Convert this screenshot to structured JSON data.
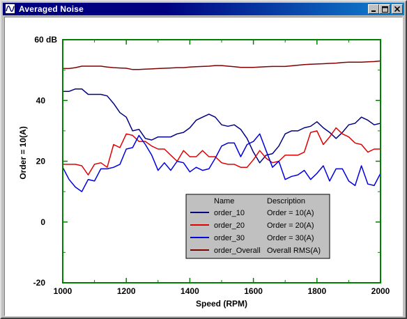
{
  "window": {
    "title": "Averaged Noise",
    "icon": "wave-app-icon",
    "buttons": {
      "minimize": "minimize-icon",
      "maximize": "maximize-icon",
      "close": "close-icon"
    }
  },
  "chart_data": {
    "type": "line",
    "xlabel": "Speed (RPM)",
    "ylabel": "Order = 10(A)",
    "ytop_label": "60 dB",
    "xlim": [
      1000,
      2000
    ],
    "ylim": [
      -20,
      60
    ],
    "xticks": [
      1000,
      1200,
      1400,
      1600,
      1800,
      2000
    ],
    "yticks": [
      -20,
      0,
      20,
      40,
      60
    ],
    "grid": false,
    "frame_color": "#008000",
    "legend": {
      "placement": "bottom-center",
      "header": {
        "name": "Name",
        "description": "Description"
      }
    },
    "series": [
      {
        "name": "order_10",
        "description": "Order = 10(A)",
        "color": "#000080",
        "x": [
          1000,
          1020,
          1040,
          1060,
          1080,
          1100,
          1120,
          1140,
          1160,
          1180,
          1200,
          1220,
          1240,
          1260,
          1280,
          1300,
          1320,
          1340,
          1360,
          1380,
          1400,
          1420,
          1440,
          1460,
          1480,
          1500,
          1520,
          1540,
          1560,
          1580,
          1600,
          1620,
          1640,
          1660,
          1680,
          1700,
          1720,
          1740,
          1760,
          1780,
          1800,
          1820,
          1840,
          1860,
          1880,
          1900,
          1920,
          1940,
          1960,
          1980,
          2000
        ],
        "values": [
          43,
          43,
          43.8,
          43.8,
          42,
          42,
          42,
          41.5,
          39,
          36,
          34.5,
          30,
          30.5,
          27.5,
          27,
          28,
          28,
          28,
          29,
          29.5,
          31,
          33.5,
          34.5,
          35.5,
          34.5,
          32,
          31.5,
          32,
          30.5,
          27.5,
          23,
          19.5,
          22,
          22.5,
          25,
          29,
          30,
          30,
          31,
          31.5,
          33,
          31,
          29.5,
          27.5,
          29.5,
          32,
          32.5,
          34.5,
          33.5,
          32,
          32.5
        ]
      },
      {
        "name": "order_20",
        "description": "Order = 20(A)",
        "color": "#e00000",
        "x": [
          1000,
          1020,
          1040,
          1060,
          1080,
          1100,
          1120,
          1140,
          1160,
          1180,
          1200,
          1220,
          1240,
          1260,
          1280,
          1300,
          1320,
          1340,
          1360,
          1380,
          1400,
          1420,
          1440,
          1460,
          1480,
          1500,
          1520,
          1540,
          1560,
          1580,
          1600,
          1620,
          1640,
          1660,
          1680,
          1700,
          1720,
          1740,
          1760,
          1780,
          1800,
          1820,
          1840,
          1860,
          1880,
          1900,
          1920,
          1940,
          1960,
          1980,
          2000
        ],
        "values": [
          19,
          19,
          19,
          18.5,
          15.5,
          19,
          19.5,
          18,
          25.5,
          24.5,
          29,
          28.5,
          26.5,
          26.5,
          25,
          24,
          24,
          22,
          20,
          23.5,
          21.5,
          21.5,
          23.5,
          21.5,
          21.5,
          19.5,
          19,
          19,
          18,
          18,
          20.5,
          23.5,
          21,
          19.5,
          20,
          22,
          22,
          22,
          23,
          29.5,
          30,
          25.5,
          28,
          31,
          29,
          28,
          26,
          25.5,
          23,
          24,
          24
        ]
      },
      {
        "name": "order_30",
        "description": "Order = 30(A)",
        "color": "#0000e0",
        "x": [
          1000,
          1020,
          1040,
          1060,
          1080,
          1100,
          1120,
          1140,
          1160,
          1180,
          1200,
          1220,
          1240,
          1260,
          1280,
          1300,
          1320,
          1340,
          1360,
          1380,
          1400,
          1420,
          1440,
          1460,
          1480,
          1500,
          1520,
          1540,
          1560,
          1580,
          1600,
          1620,
          1640,
          1660,
          1680,
          1700,
          1720,
          1740,
          1760,
          1780,
          1800,
          1820,
          1840,
          1860,
          1880,
          1900,
          1920,
          1940,
          1960,
          1980,
          2000
        ],
        "values": [
          18,
          14,
          11.5,
          10,
          14,
          13.5,
          17.5,
          17.5,
          18,
          19,
          24,
          24.5,
          28.5,
          25.5,
          22,
          17,
          19.5,
          17,
          20,
          19.5,
          16.5,
          18,
          17,
          17.5,
          21,
          25,
          26,
          26,
          21.5,
          25.5,
          26.5,
          29,
          23.5,
          18,
          20,
          14,
          15,
          15.5,
          17,
          14,
          16,
          18.5,
          13.5,
          17.5,
          17.5,
          13.5,
          12,
          18.5,
          12.5,
          12,
          16
        ]
      },
      {
        "name": "order_Overall",
        "description": "Overall RMS(A)",
        "color": "#800000",
        "x": [
          1000,
          1020,
          1040,
          1060,
          1080,
          1100,
          1120,
          1140,
          1160,
          1180,
          1200,
          1220,
          1240,
          1260,
          1280,
          1300,
          1320,
          1340,
          1360,
          1380,
          1400,
          1420,
          1440,
          1460,
          1480,
          1500,
          1520,
          1540,
          1560,
          1580,
          1600,
          1620,
          1640,
          1660,
          1680,
          1700,
          1720,
          1740,
          1760,
          1780,
          1800,
          1820,
          1840,
          1860,
          1880,
          1900,
          1920,
          1940,
          1960,
          1980,
          2000
        ],
        "values": [
          50.5,
          50.5,
          50.8,
          51.3,
          51.3,
          51.3,
          51.3,
          51,
          50.8,
          50.7,
          50.6,
          50.2,
          50.2,
          50.3,
          50.4,
          50.5,
          50.6,
          50.7,
          50.8,
          50.8,
          51,
          51.1,
          51.2,
          51.3,
          51.5,
          51.5,
          51.3,
          51.1,
          50.9,
          50.9,
          50.9,
          51,
          51.1,
          51.2,
          51.2,
          51.2,
          51.4,
          51.6,
          51.8,
          51.9,
          52,
          52.1,
          52.2,
          52.3,
          52.5,
          52.6,
          52.6,
          52.6,
          52.7,
          52.8,
          53
        ]
      }
    ]
  }
}
